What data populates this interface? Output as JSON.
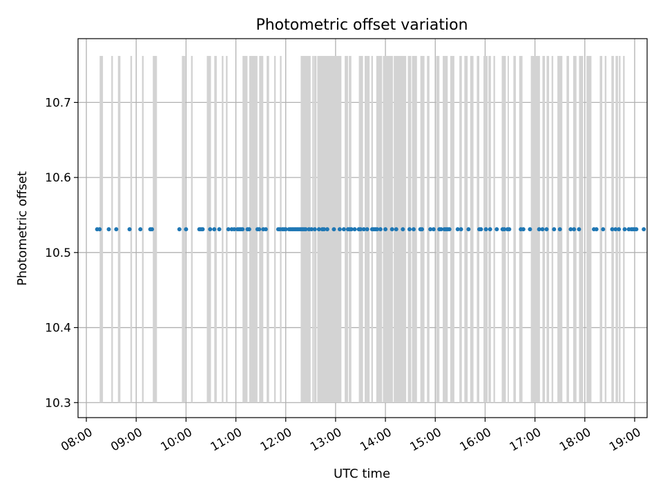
{
  "chart_data": {
    "type": "scatter",
    "title": "Photometric offset variation",
    "xlabel": "UTC time",
    "ylabel": "Photometric offset",
    "grid": true,
    "xlim": [
      "07:50",
      "19:15"
    ],
    "ylim": [
      10.28,
      10.785
    ],
    "x_ticks": [
      "08:00",
      "09:00",
      "10:00",
      "11:00",
      "12:00",
      "13:00",
      "14:00",
      "15:00",
      "16:00",
      "17:00",
      "18:00",
      "19:00"
    ],
    "y_ticks": [
      10.3,
      10.4,
      10.5,
      10.6,
      10.7
    ],
    "colors": {
      "points": "#1f77b4",
      "bars": "#d3d3d3",
      "grid": "#b0b0b0"
    },
    "bar_range": [
      10.3,
      10.762
    ],
    "point_value": 10.531,
    "bar_intervals": [
      [
        "08:16",
        "08:20"
      ],
      [
        "08:30",
        "08:32"
      ],
      [
        "08:38",
        "08:41"
      ],
      [
        "08:53",
        "08:55"
      ],
      [
        "09:07",
        "09:09"
      ],
      [
        "09:20",
        "09:25"
      ],
      [
        "09:55",
        "09:59"
      ],
      [
        "10:06",
        "10:08"
      ],
      [
        "10:25",
        "10:30"
      ],
      [
        "10:34",
        "10:37"
      ],
      [
        "10:43",
        "10:45"
      ],
      [
        "10:48",
        "10:50"
      ],
      [
        "11:08",
        "11:14"
      ],
      [
        "11:16",
        "11:26"
      ],
      [
        "11:28",
        "11:33"
      ],
      [
        "11:37",
        "11:40"
      ],
      [
        "11:46",
        "11:48"
      ],
      [
        "11:53",
        "11:55"
      ],
      [
        "12:18",
        "12:30"
      ],
      [
        "12:32",
        "12:33"
      ],
      [
        "12:34",
        "12:37"
      ],
      [
        "12:38",
        "13:07"
      ],
      [
        "13:11",
        "13:15"
      ],
      [
        "13:16",
        "13:19"
      ],
      [
        "13:28",
        "13:33"
      ],
      [
        "13:35",
        "13:41"
      ],
      [
        "13:43",
        "13:45"
      ],
      [
        "13:49",
        "13:56"
      ],
      [
        "13:57",
        "14:09"
      ],
      [
        "14:10",
        "14:25"
      ],
      [
        "14:27",
        "14:31"
      ],
      [
        "14:32",
        "14:38"
      ],
      [
        "14:42",
        "14:47"
      ],
      [
        "14:50",
        "14:53"
      ],
      [
        "15:01",
        "15:05"
      ],
      [
        "15:09",
        "15:15"
      ],
      [
        "15:18",
        "15:23"
      ],
      [
        "15:29",
        "15:32"
      ],
      [
        "15:35",
        "15:39"
      ],
      [
        "15:42",
        "15:46"
      ],
      [
        "15:50",
        "15:53"
      ],
      [
        "15:58",
        "16:03"
      ],
      [
        "16:04",
        "16:07"
      ],
      [
        "16:10",
        "16:12"
      ],
      [
        "16:20",
        "16:25"
      ],
      [
        "16:27",
        "16:28"
      ],
      [
        "16:34",
        "16:37"
      ],
      [
        "16:41",
        "16:45"
      ],
      [
        "16:55",
        "17:06"
      ],
      [
        "17:09",
        "17:12"
      ],
      [
        "17:14",
        "17:17"
      ],
      [
        "17:20",
        "17:22"
      ],
      [
        "17:27",
        "17:33"
      ],
      [
        "17:38",
        "17:41"
      ],
      [
        "17:46",
        "17:50"
      ],
      [
        "17:53",
        "17:58"
      ],
      [
        "18:02",
        "18:08"
      ],
      [
        "18:18",
        "18:21"
      ],
      [
        "18:24",
        "18:26"
      ],
      [
        "18:32",
        "18:35"
      ],
      [
        "18:37",
        "18:40"
      ],
      [
        "18:41",
        "18:43"
      ],
      [
        "18:46",
        "18:48"
      ]
    ],
    "points_x": [
      "08:13",
      "08:16",
      "08:27",
      "08:36",
      "08:52",
      "09:05",
      "09:17",
      "09:19",
      "09:52",
      "10:00",
      "10:16",
      "10:18",
      "10:20",
      "10:29",
      "10:34",
      "10:40",
      "10:51",
      "10:55",
      "10:58",
      "11:02",
      "11:04",
      "11:06",
      "11:08",
      "11:14",
      "11:16",
      "11:26",
      "11:28",
      "11:33",
      "11:36",
      "11:51",
      "11:53",
      "11:56",
      "11:58",
      "12:00",
      "12:04",
      "12:06",
      "12:08",
      "12:10",
      "12:12",
      "12:14",
      "12:16",
      "12:18",
      "12:20",
      "12:22",
      "12:24",
      "12:28",
      "12:31",
      "12:35",
      "12:40",
      "12:44",
      "12:46",
      "12:50",
      "12:58",
      "13:05",
      "13:10",
      "13:15",
      "13:17",
      "13:19",
      "13:23",
      "13:28",
      "13:30",
      "13:34",
      "13:38",
      "13:44",
      "13:46",
      "13:48",
      "13:50",
      "13:54",
      "14:00",
      "14:08",
      "14:13",
      "14:21",
      "14:29",
      "14:34",
      "14:42",
      "14:44",
      "14:54",
      "14:58",
      "15:05",
      "15:07",
      "15:11",
      "15:13",
      "15:15",
      "15:17",
      "15:27",
      "15:31",
      "15:40",
      "15:53",
      "15:55",
      "16:01",
      "16:06",
      "16:14",
      "16:21",
      "16:23",
      "16:27",
      "16:29",
      "16:43",
      "16:46",
      "16:54",
      "17:05",
      "17:09",
      "17:14",
      "17:23",
      "17:30",
      "17:43",
      "17:47",
      "17:53",
      "18:11",
      "18:14",
      "18:22",
      "18:33",
      "18:37",
      "18:41",
      "18:48",
      "18:53",
      "18:56",
      "18:58",
      "19:00",
      "19:02",
      "19:11"
    ]
  }
}
